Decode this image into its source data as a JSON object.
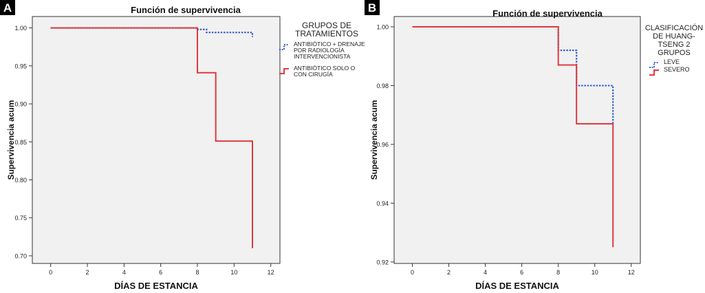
{
  "chart_data": [
    {
      "panel_label": "A",
      "type": "line",
      "step": true,
      "title": "Función de supervivencia",
      "xlabel": "DÍAS DE ESTANCIA",
      "ylabel": "Supervivencia acum",
      "xlim": [
        -1,
        12.5
      ],
      "ylim": [
        0.69,
        1.015
      ],
      "xticks": [
        0,
        2,
        4,
        6,
        8,
        10,
        12
      ],
      "yticks": [
        1.0,
        0.95,
        0.9,
        0.85,
        0.8,
        0.75,
        0.7
      ],
      "ytick_labels": [
        "1.00",
        "0.95",
        "0.90",
        "0.85",
        "0.80",
        "0.75",
        "0.70"
      ],
      "legend_title": "GRUPOS DE TRATAMIENTOS",
      "legend_title_lines": [
        "GRUPOS DE",
        "TRATAMIENTOS"
      ],
      "legend_placement": "right",
      "grid": false,
      "series": [
        {
          "name": "ANTIBIÓTICO + DRENAJE POR RADIOLOGÍA INTERVENCIONISTA",
          "name_lines": [
            "ANTIBIÓTICO + DRENAJE",
            "POR RADIOLOGÍA",
            "INTERVENCIONISTA"
          ],
          "style": "dotted",
          "color": "#3a5fc8",
          "x": [
            0,
            8,
            8.5,
            11
          ],
          "y": [
            1.0,
            0.998,
            0.994,
            0.988
          ]
        },
        {
          "name": "ANTIBIÓTICO SOLO O CON CIRUGÍA",
          "name_lines": [
            "ANTIBIÓTICO SOLO O",
            "CON CIRUGÍA"
          ],
          "style": "solid",
          "color": "#e0393e",
          "x": [
            0,
            8,
            9,
            11
          ],
          "y": [
            1.0,
            0.941,
            0.851,
            0.71
          ]
        }
      ]
    },
    {
      "panel_label": "B",
      "type": "line",
      "step": true,
      "title": "Función de supervivencia",
      "xlabel": "DÍAS DE ESTANCIA",
      "ylabel": "Supervivencia acum",
      "xlim": [
        -1,
        12.5
      ],
      "ylim": [
        0.9195,
        1.0035
      ],
      "xticks": [
        0,
        2,
        4,
        6,
        8,
        10,
        12
      ],
      "yticks": [
        1.0,
        0.98,
        0.96,
        0.94,
        0.92
      ],
      "ytick_labels": [
        "1.00",
        "0.98",
        "0.96",
        "0.94",
        "0.92"
      ],
      "legend_title": "CLASIFICACIÓN DE HUANG-TSENG 2 GRUPOS",
      "legend_title_lines": [
        "CLASIFICACIÓN",
        "DE HUANG-",
        "TSENG 2",
        "GRUPOS"
      ],
      "legend_placement": "right",
      "grid": false,
      "series": [
        {
          "name": "LEVE",
          "name_lines": [
            "LEVE"
          ],
          "style": "dotted",
          "color": "#3a5fc8",
          "x": [
            0,
            8,
            9,
            11
          ],
          "y": [
            1.0,
            0.992,
            0.98,
            0.967
          ]
        },
        {
          "name": "SEVERO",
          "name_lines": [
            "SEVERO"
          ],
          "style": "solid",
          "color": "#e0393e",
          "x": [
            0,
            8,
            9,
            11
          ],
          "y": [
            1.0,
            0.987,
            0.967,
            0.925
          ]
        }
      ]
    }
  ],
  "colors": {
    "plot_background": "#f1f1f1",
    "axis": "#333333",
    "panel_badge": "#000000",
    "panel_badge_text": "#ffffff"
  }
}
